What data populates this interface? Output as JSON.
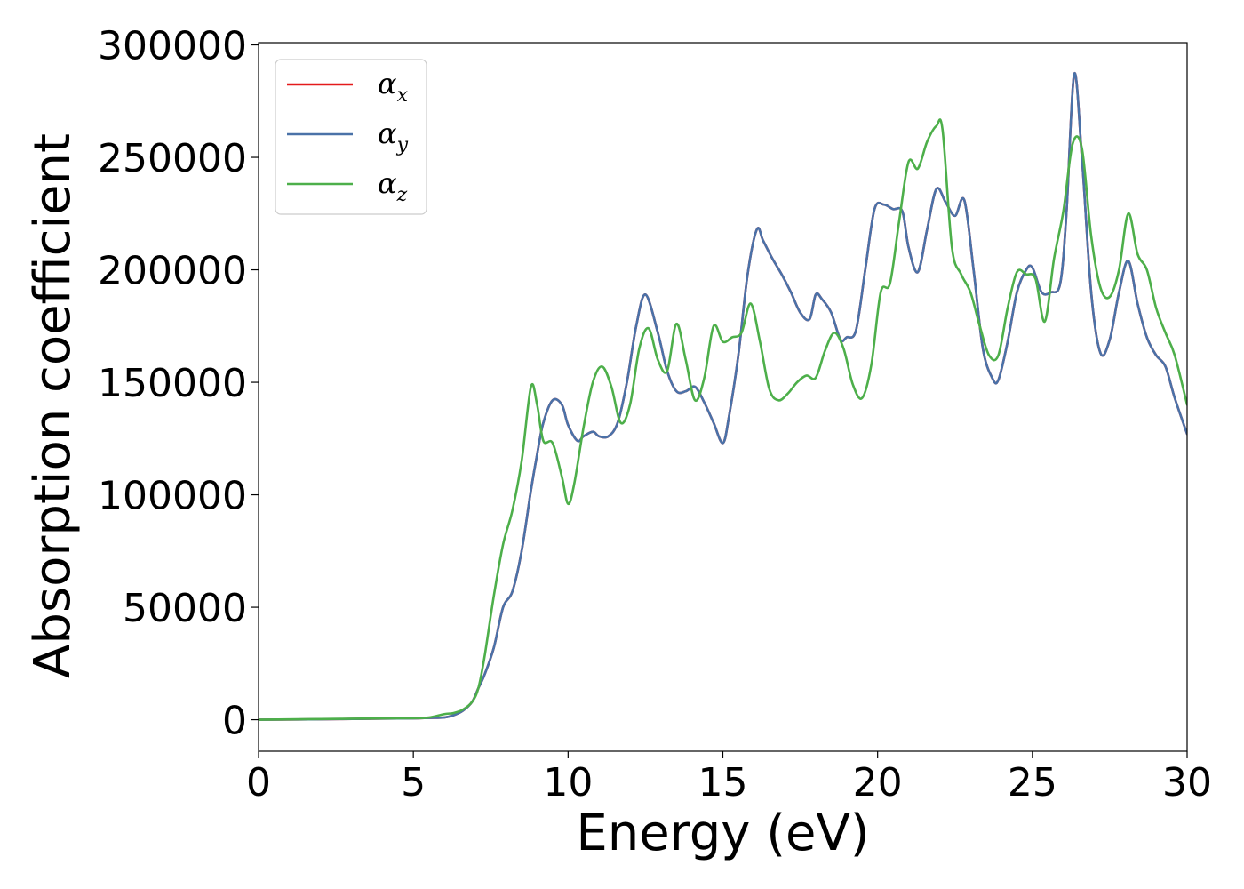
{
  "chart_data": {
    "type": "line",
    "xlabel": "Energy (eV)",
    "ylabel": "Absorption coefficient",
    "xlim": [
      0,
      30
    ],
    "ylim": [
      -14000,
      301000
    ],
    "xticks": [
      0,
      5,
      10,
      15,
      20,
      25,
      30
    ],
    "xtick_labels": [
      "0",
      "5",
      "10",
      "15",
      "20",
      "25",
      "30"
    ],
    "yticks": [
      0,
      50000,
      100000,
      150000,
      200000,
      250000,
      300000
    ],
    "ytick_labels": [
      "0",
      "50000",
      "100000",
      "150000",
      "200000",
      "250000",
      "300000"
    ],
    "grid": false,
    "legend_position": "top-left",
    "series": [
      {
        "name": "α_x",
        "symbol": "α",
        "subscript": "x",
        "color": "#e41a1c",
        "x": [
          0,
          2,
          4,
          5,
          5.5,
          6,
          6.3,
          6.6,
          6.9,
          7.1,
          7.3,
          7.6,
          7.9,
          8.2,
          8.5,
          8.8,
          9,
          9.2,
          9.5,
          9.8,
          10,
          10.3,
          10.5,
          10.8,
          11,
          11.3,
          11.6,
          11.9,
          12.2,
          12.5,
          12.9,
          13.2,
          13.5,
          13.8,
          14.1,
          14.4,
          14.7,
          15,
          15.2,
          15.5,
          15.8,
          16.1,
          16.3,
          16.6,
          16.9,
          17.2,
          17.5,
          17.8,
          18,
          18.2,
          18.5,
          18.8,
          19,
          19.3,
          19.6,
          19.9,
          20.2,
          20.5,
          20.8,
          21,
          21.3,
          21.6,
          21.9,
          22.2,
          22.5,
          22.8,
          23.1,
          23.4,
          23.7,
          23.9,
          24.2,
          24.5,
          24.8,
          25,
          25.3,
          25.6,
          25.9,
          26.1,
          26.35,
          26.6,
          26.9,
          27.2,
          27.5,
          27.8,
          28.1,
          28.4,
          28.7,
          29,
          29.3,
          29.6,
          30
        ],
        "y": [
          0,
          200,
          500,
          600,
          800,
          1000,
          2000,
          4000,
          8000,
          14000,
          20000,
          32000,
          50000,
          57000,
          75000,
          102000,
          118000,
          132000,
          142000,
          140000,
          131000,
          124000,
          126000,
          128000,
          126000,
          126000,
          132000,
          150000,
          175000,
          189000,
          172000,
          155000,
          146000,
          146000,
          148000,
          141000,
          132000,
          123000,
          135000,
          162000,
          198000,
          218000,
          213000,
          205000,
          198000,
          190000,
          181000,
          178000,
          189000,
          187000,
          181000,
          169000,
          170000,
          173000,
          200000,
          227000,
          229000,
          227000,
          226000,
          210000,
          199000,
          218000,
          236000,
          230000,
          224000,
          231000,
          200000,
          165000,
          152000,
          151000,
          168000,
          190000,
          200000,
          201000,
          190000,
          190000,
          194000,
          225000,
          287000,
          250000,
          190000,
          163000,
          169000,
          190000,
          204000,
          185000,
          170000,
          162000,
          157000,
          143000,
          127000
        ]
      },
      {
        "name": "α_y",
        "symbol": "α",
        "subscript": "y",
        "color": "#4a72a8",
        "x": [
          0,
          2,
          4,
          5,
          5.5,
          6,
          6.3,
          6.6,
          6.9,
          7.1,
          7.3,
          7.6,
          7.9,
          8.2,
          8.5,
          8.8,
          9,
          9.2,
          9.5,
          9.8,
          10,
          10.3,
          10.5,
          10.8,
          11,
          11.3,
          11.6,
          11.9,
          12.2,
          12.5,
          12.9,
          13.2,
          13.5,
          13.8,
          14.1,
          14.4,
          14.7,
          15,
          15.2,
          15.5,
          15.8,
          16.1,
          16.3,
          16.6,
          16.9,
          17.2,
          17.5,
          17.8,
          18,
          18.2,
          18.5,
          18.8,
          19,
          19.3,
          19.6,
          19.9,
          20.2,
          20.5,
          20.8,
          21,
          21.3,
          21.6,
          21.9,
          22.2,
          22.5,
          22.8,
          23.1,
          23.4,
          23.7,
          23.9,
          24.2,
          24.5,
          24.8,
          25,
          25.3,
          25.6,
          25.9,
          26.1,
          26.35,
          26.6,
          26.9,
          27.2,
          27.5,
          27.8,
          28.1,
          28.4,
          28.7,
          29,
          29.3,
          29.6,
          30
        ],
        "y": [
          0,
          200,
          500,
          600,
          800,
          1000,
          2000,
          4000,
          8000,
          14000,
          20000,
          32000,
          50000,
          57000,
          75000,
          102000,
          118000,
          132000,
          142000,
          140000,
          131000,
          124000,
          126000,
          128000,
          126000,
          126000,
          132000,
          150000,
          175000,
          189000,
          172000,
          155000,
          146000,
          146000,
          148000,
          141000,
          132000,
          123000,
          135000,
          162000,
          198000,
          218000,
          213000,
          205000,
          198000,
          190000,
          181000,
          178000,
          189000,
          187000,
          181000,
          169000,
          170000,
          173000,
          200000,
          227000,
          229000,
          227000,
          226000,
          210000,
          199000,
          218000,
          236000,
          230000,
          224000,
          231000,
          200000,
          165000,
          152000,
          151000,
          168000,
          190000,
          200000,
          201000,
          190000,
          190000,
          194000,
          225000,
          287000,
          250000,
          190000,
          163000,
          169000,
          190000,
          204000,
          185000,
          170000,
          162000,
          157000,
          143000,
          127000
        ]
      },
      {
        "name": "α_z",
        "symbol": "α",
        "subscript": "z",
        "color": "#4daf4a",
        "x": [
          0,
          2,
          4,
          5,
          5.5,
          6,
          6.3,
          6.6,
          6.9,
          7.1,
          7.3,
          7.6,
          7.9,
          8.2,
          8.5,
          8.8,
          9,
          9.2,
          9.5,
          9.8,
          10,
          10.2,
          10.5,
          10.8,
          11.1,
          11.4,
          11.7,
          12,
          12.3,
          12.6,
          12.9,
          13.2,
          13.5,
          13.8,
          14.1,
          14.4,
          14.7,
          15,
          15.3,
          15.6,
          15.9,
          16.2,
          16.5,
          16.8,
          17.1,
          17.4,
          17.7,
          18,
          18.3,
          18.6,
          18.9,
          19.2,
          19.5,
          19.8,
          20.1,
          20.4,
          20.7,
          21,
          21.3,
          21.6,
          21.9,
          22.1,
          22.4,
          22.7,
          23,
          23.3,
          23.6,
          23.9,
          24.2,
          24.5,
          24.8,
          25.1,
          25.4,
          25.7,
          26,
          26.3,
          26.6,
          26.9,
          27.2,
          27.5,
          27.8,
          28.1,
          28.4,
          28.7,
          29,
          29.3,
          29.6,
          30
        ],
        "y": [
          0,
          300,
          600,
          700,
          1000,
          2500,
          3000,
          4500,
          8000,
          14000,
          28000,
          55000,
          78000,
          93000,
          115000,
          148000,
          140000,
          124000,
          123000,
          108000,
          96000,
          105000,
          130000,
          150000,
          157000,
          148000,
          132000,
          140000,
          165000,
          174000,
          160000,
          155000,
          176000,
          160000,
          142000,
          152000,
          175000,
          168000,
          170000,
          172000,
          185000,
          168000,
          147000,
          142000,
          145000,
          150000,
          153000,
          152000,
          164000,
          172000,
          165000,
          149000,
          143000,
          158000,
          190000,
          194000,
          222000,
          248000,
          245000,
          257000,
          264000,
          262000,
          210000,
          198000,
          190000,
          175000,
          162000,
          162000,
          183000,
          199000,
          198000,
          196000,
          177000,
          205000,
          226000,
          256000,
          254000,
          215000,
          192000,
          188000,
          200000,
          225000,
          207000,
          200000,
          183000,
          172000,
          162000,
          140000
        ]
      }
    ]
  }
}
